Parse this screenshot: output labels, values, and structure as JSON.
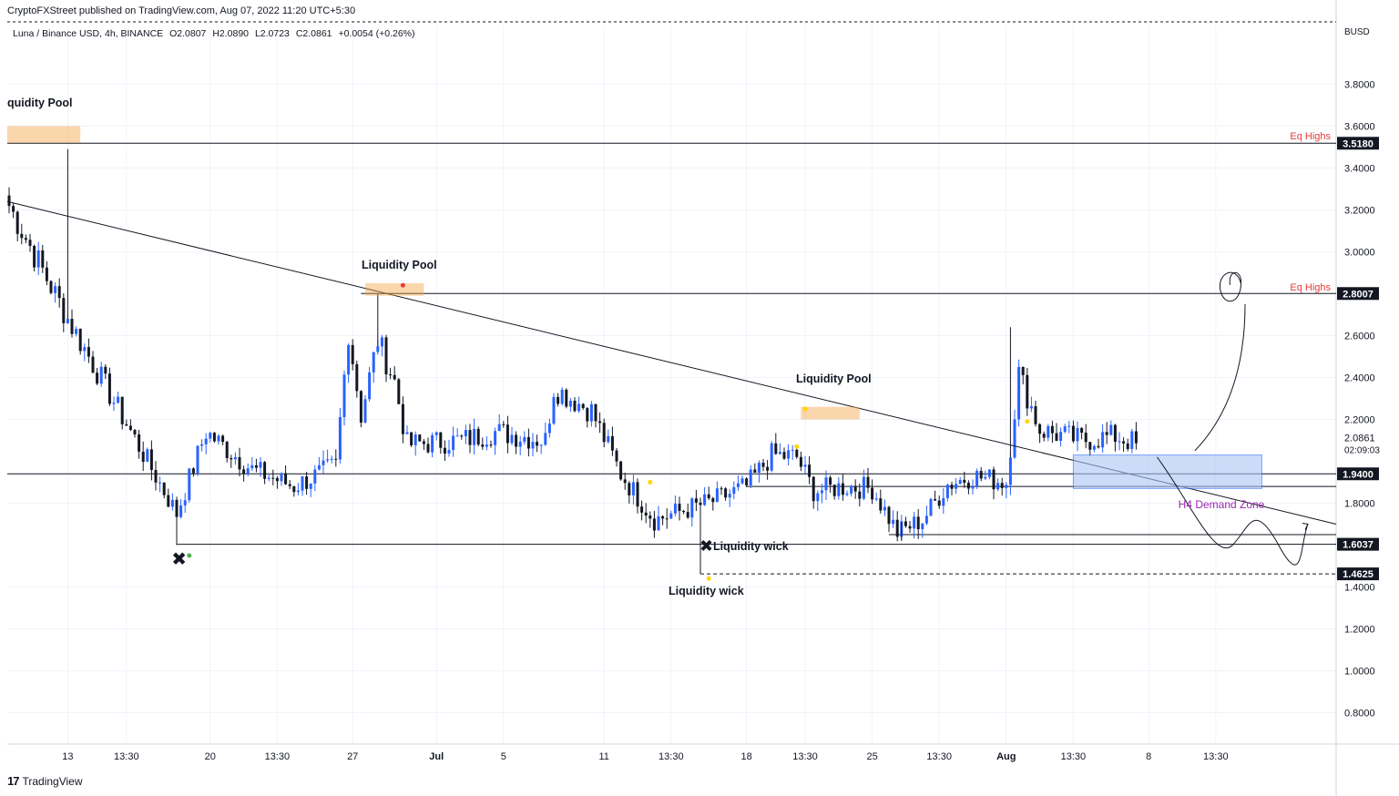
{
  "header": {
    "publisher": "CryptoFXStreet published on TradingView.com, Aug 07, 2022 11:20 UTC+5:30"
  },
  "legend": {
    "symbol": "Luna / Binance USD, 4h, BINANCE",
    "open": "O2.0807",
    "high": "H2.0890",
    "low": "L2.0723",
    "close": "C2.0861",
    "change": "+0.0054 (+0.26%)"
  },
  "footer": {
    "brand": "TradingView"
  },
  "colors": {
    "up": "#2962ff",
    "down": "#131722",
    "zone_fill": "#f5a54a",
    "demand_fill": "#aac4f5",
    "eq_label": "#e53935",
    "demand_label": "#9c27b0"
  },
  "chart_data": {
    "type": "candlestick",
    "currency": "BUSD",
    "ylim": [
      0.65,
      4.08
    ],
    "y_ticks": [
      "3.8000",
      "3.6000",
      "3.4000",
      "3.2000",
      "3.0000",
      "2.6000",
      "2.4000",
      "2.2000",
      "1.8000",
      "1.4000",
      "1.2000",
      "1.0000",
      "0.8000"
    ],
    "y_tick_values": [
      3.8,
      3.6,
      3.4,
      3.2,
      3.0,
      2.6,
      2.4,
      2.2,
      1.8,
      1.4,
      1.2,
      1.0,
      0.8
    ],
    "x_ticks": [
      "13",
      "13:30",
      "20",
      "13:30",
      "27",
      "Jul",
      "5",
      "11",
      "13:30",
      "18",
      "13:30",
      "25",
      "13:30",
      "Aug",
      "13:30",
      "8",
      "13:30"
    ],
    "x_tick_bars": [
      14,
      28,
      48,
      64,
      82,
      102,
      118,
      142,
      158,
      176,
      190,
      206,
      222,
      238,
      254,
      272,
      288
    ],
    "x_tick_bold": [
      false,
      false,
      false,
      false,
      false,
      true,
      false,
      false,
      false,
      false,
      false,
      false,
      false,
      true,
      false,
      false,
      false
    ],
    "price_levels": [
      {
        "price": 3.518,
        "label": "3.5180"
      },
      {
        "price": 2.8007,
        "label": "2.8007"
      },
      {
        "price": 1.94,
        "label": "1.9400"
      },
      {
        "price": 1.6037,
        "label": "1.6037"
      },
      {
        "price": 1.4625,
        "label": "1.4625"
      }
    ],
    "last_price": {
      "price": 2.0861,
      "label": "2.0861",
      "countdown": "02:09:03"
    },
    "annotations": {
      "liquidity_pool": "Liquidity Pool",
      "liquidity_pool_cut": "quidity Pool",
      "eq_highs": "Eq Highs",
      "liquidity_wick": "Liquidity wick",
      "demand_zone": "H4 Demand Zone"
    },
    "anchors": [
      {
        "bar": 0,
        "price": 3.22
      },
      {
        "bar": 14,
        "price": 2.68
      },
      {
        "bar": 40,
        "price": 1.75
      },
      {
        "bar": 47,
        "price": 2.14
      },
      {
        "bar": 58,
        "price": 1.96
      },
      {
        "bar": 68,
        "price": 1.88
      },
      {
        "bar": 78,
        "price": 1.98
      },
      {
        "bar": 81,
        "price": 2.62
      },
      {
        "bar": 84,
        "price": 2.22
      },
      {
        "bar": 88,
        "price": 2.58
      },
      {
        "bar": 92,
        "price": 2.38
      },
      {
        "bar": 95,
        "price": 2.08
      },
      {
        "bar": 108,
        "price": 2.1
      },
      {
        "bar": 116,
        "price": 2.14
      },
      {
        "bar": 122,
        "price": 2.12
      },
      {
        "bar": 128,
        "price": 2.1
      },
      {
        "bar": 130,
        "price": 2.35
      },
      {
        "bar": 139,
        "price": 2.24
      },
      {
        "bar": 146,
        "price": 1.94
      },
      {
        "bar": 154,
        "price": 1.72
      },
      {
        "bar": 160,
        "price": 1.76
      },
      {
        "bar": 168,
        "price": 1.81
      },
      {
        "bar": 176,
        "price": 1.88
      },
      {
        "bar": 182,
        "price": 2.03
      },
      {
        "bar": 188,
        "price": 2.02
      },
      {
        "bar": 192,
        "price": 1.86
      },
      {
        "bar": 200,
        "price": 1.88
      },
      {
        "bar": 206,
        "price": 1.87
      },
      {
        "bar": 212,
        "price": 1.66
      },
      {
        "bar": 218,
        "price": 1.72
      },
      {
        "bar": 224,
        "price": 1.89
      },
      {
        "bar": 230,
        "price": 1.93
      },
      {
        "bar": 238,
        "price": 1.9
      },
      {
        "bar": 241,
        "price": 2.42
      },
      {
        "bar": 246,
        "price": 2.15
      },
      {
        "bar": 256,
        "price": 2.1
      },
      {
        "bar": 264,
        "price": 2.12
      },
      {
        "bar": 269,
        "price": 2.0861
      }
    ]
  }
}
